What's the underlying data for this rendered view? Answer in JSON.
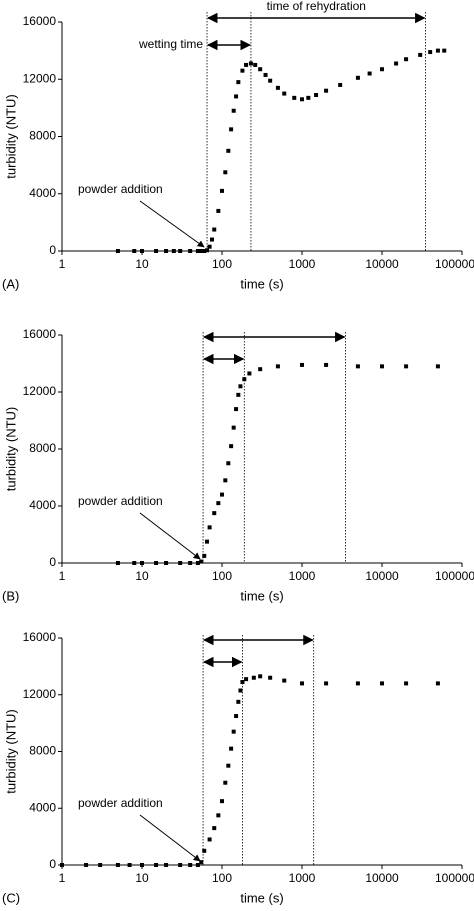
{
  "chart_data": [
    {
      "type": "scatter",
      "panel_label": "(A)",
      "xlabel": "time (s)",
      "ylabel": "turbidity (NTU)",
      "log_x": true,
      "color": "#000000",
      "xlim": [
        1,
        100000
      ],
      "xticks": [
        1,
        10,
        100,
        1000,
        10000,
        100000
      ],
      "ylim": [
        0,
        16000
      ],
      "yticks": [
        0,
        4000,
        8000,
        12000,
        16000
      ],
      "annotations": {
        "rehydration": "time of rehydration",
        "wetting": "wetting time",
        "powder": "powder addition"
      },
      "vlines": [
        65,
        230,
        35000
      ],
      "x": [
        5,
        8,
        10,
        15,
        20,
        25,
        30,
        40,
        50,
        55,
        60,
        65,
        70,
        75,
        80,
        90,
        100,
        110,
        120,
        130,
        140,
        150,
        160,
        180,
        200,
        230,
        260,
        300,
        350,
        400,
        500,
        600,
        800,
        1000,
        1200,
        1500,
        2000,
        3000,
        5000,
        7000,
        10000,
        15000,
        20000,
        30000,
        40000,
        50000,
        60000
      ],
      "values": [
        0,
        0,
        0,
        0,
        0,
        0,
        0,
        0,
        0,
        0,
        0,
        50,
        300,
        800,
        1500,
        2800,
        4200,
        5500,
        7000,
        8500,
        9800,
        10800,
        11800,
        12600,
        13000,
        13100,
        13000,
        12700,
        12300,
        11900,
        11400,
        11000,
        10700,
        10600,
        10700,
        10900,
        11200,
        11600,
        12100,
        12400,
        12700,
        13100,
        13400,
        13700,
        13900,
        14000,
        14000
      ]
    },
    {
      "type": "scatter",
      "panel_label": "(B)",
      "xlabel": "time (s)",
      "ylabel": "turbidity (NTU)",
      "log_x": true,
      "color": "#000000",
      "xlim": [
        1,
        100000
      ],
      "xticks": [
        1,
        10,
        100,
        1000,
        10000,
        100000
      ],
      "ylim": [
        0,
        16000
      ],
      "yticks": [
        0,
        4000,
        8000,
        12000,
        16000
      ],
      "annotations": {
        "powder": "powder addition"
      },
      "vlines": [
        58,
        190,
        3500
      ],
      "x": [
        5,
        8,
        10,
        15,
        20,
        30,
        40,
        50,
        55,
        60,
        65,
        70,
        80,
        90,
        100,
        110,
        120,
        130,
        140,
        150,
        160,
        170,
        190,
        220,
        300,
        500,
        1000,
        2000,
        5000,
        10000,
        20000,
        50000
      ],
      "values": [
        0,
        0,
        0,
        0,
        0,
        0,
        0,
        0,
        100,
        500,
        1500,
        2500,
        3500,
        4200,
        4800,
        5800,
        7000,
        8200,
        9500,
        10800,
        11800,
        12400,
        12900,
        13300,
        13600,
        13800,
        13900,
        13900,
        13800,
        13800,
        13800,
        13800
      ]
    },
    {
      "type": "scatter",
      "panel_label": "(C)",
      "xlabel": "time (s)",
      "ylabel": "turbidity (NTU)",
      "log_x": true,
      "color": "#000000",
      "xlim": [
        1,
        100000
      ],
      "xticks": [
        1,
        10,
        100,
        1000,
        10000,
        100000
      ],
      "ylim": [
        0,
        16000
      ],
      "yticks": [
        0,
        4000,
        8000,
        12000,
        16000
      ],
      "annotations": {
        "powder": "powder addition"
      },
      "vlines": [
        58,
        180,
        1400
      ],
      "x": [
        1,
        2,
        3,
        5,
        7,
        10,
        15,
        20,
        30,
        40,
        50,
        55,
        60,
        70,
        80,
        90,
        100,
        110,
        120,
        130,
        140,
        150,
        160,
        170,
        180,
        200,
        250,
        300,
        400,
        600,
        1000,
        2000,
        5000,
        10000,
        20000,
        50000
      ],
      "values": [
        0,
        0,
        0,
        0,
        0,
        0,
        0,
        0,
        0,
        0,
        0,
        200,
        1000,
        1800,
        2600,
        3500,
        4500,
        5800,
        7000,
        8200,
        9400,
        10500,
        11500,
        12300,
        12900,
        13100,
        13200,
        13300,
        13200,
        13000,
        12800,
        12800,
        12800,
        12800,
        12800,
        12800
      ]
    }
  ]
}
